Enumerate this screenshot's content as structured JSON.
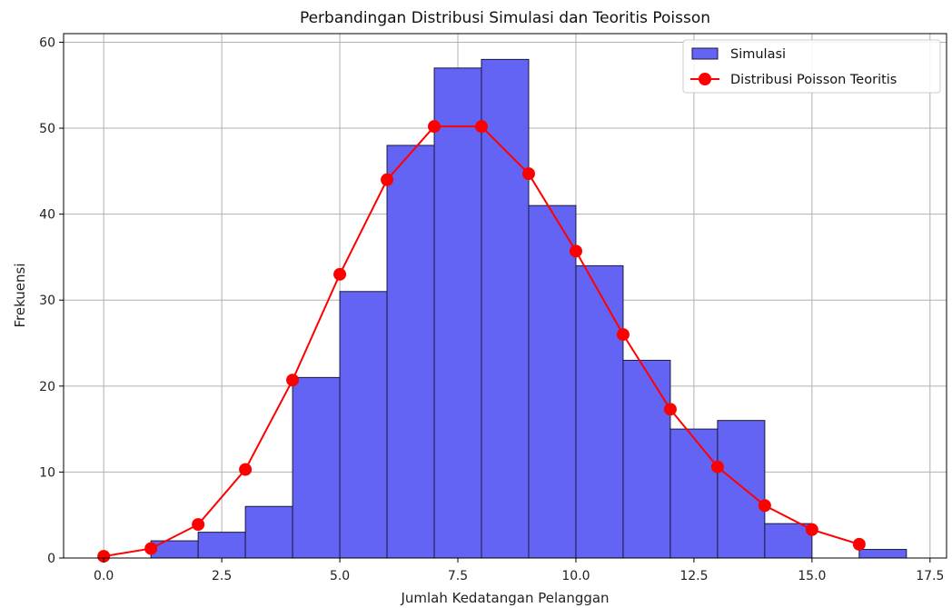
{
  "chart_data": {
    "type": "bar",
    "title": "Perbandingan Distribusi Simulasi dan Teoritis Poisson",
    "xlabel": "Jumlah Kedatangan Pelanggan",
    "ylabel": "Frekuensi",
    "xlim": [
      -0.85,
      17.85
    ],
    "ylim": [
      0,
      61
    ],
    "xticks": [
      0.0,
      2.5,
      5.0,
      7.5,
      10.0,
      12.5,
      15.0,
      17.5
    ],
    "xtick_labels": [
      "0.0",
      "2.5",
      "5.0",
      "7.5",
      "10.0",
      "12.5",
      "15.0",
      "17.5"
    ],
    "yticks": [
      0,
      10,
      20,
      30,
      40,
      50,
      60
    ],
    "ytick_labels": [
      "0",
      "10",
      "20",
      "30",
      "40",
      "50",
      "60"
    ],
    "grid": true,
    "legend_position": "top-right",
    "series": [
      {
        "name": "Simulasi",
        "type": "histogram",
        "color": "#6464f4",
        "edge_color": "#1a1a3a",
        "bins": [
          {
            "start": 1,
            "end": 2,
            "value": 2
          },
          {
            "start": 2,
            "end": 3,
            "value": 3
          },
          {
            "start": 3,
            "end": 4,
            "value": 6
          },
          {
            "start": 4,
            "end": 5,
            "value": 21
          },
          {
            "start": 5,
            "end": 6,
            "value": 31
          },
          {
            "start": 6,
            "end": 7,
            "value": 48
          },
          {
            "start": 7,
            "end": 8,
            "value": 57
          },
          {
            "start": 8,
            "end": 9,
            "value": 58
          },
          {
            "start": 9,
            "end": 10,
            "value": 41
          },
          {
            "start": 10,
            "end": 11,
            "value": 34
          },
          {
            "start": 11,
            "end": 12,
            "value": 23
          },
          {
            "start": 12,
            "end": 13,
            "value": 15
          },
          {
            "start": 13,
            "end": 14,
            "value": 16
          },
          {
            "start": 14,
            "end": 15,
            "value": 4
          },
          {
            "start": 16,
            "end": 17,
            "value": 1
          }
        ]
      },
      {
        "name": "Distribusi Poisson Teoritis",
        "type": "line",
        "color": "#ff0000",
        "marker": "circle",
        "x": [
          0,
          1,
          2,
          3,
          4,
          5,
          6,
          7,
          8,
          9,
          10,
          11,
          12,
          13,
          14,
          15,
          16
        ],
        "y": [
          0.2,
          1.1,
          3.9,
          10.3,
          20.7,
          33.0,
          44.0,
          50.2,
          50.2,
          44.7,
          35.7,
          26.0,
          17.3,
          10.6,
          6.1,
          3.3,
          1.6
        ]
      }
    ]
  }
}
